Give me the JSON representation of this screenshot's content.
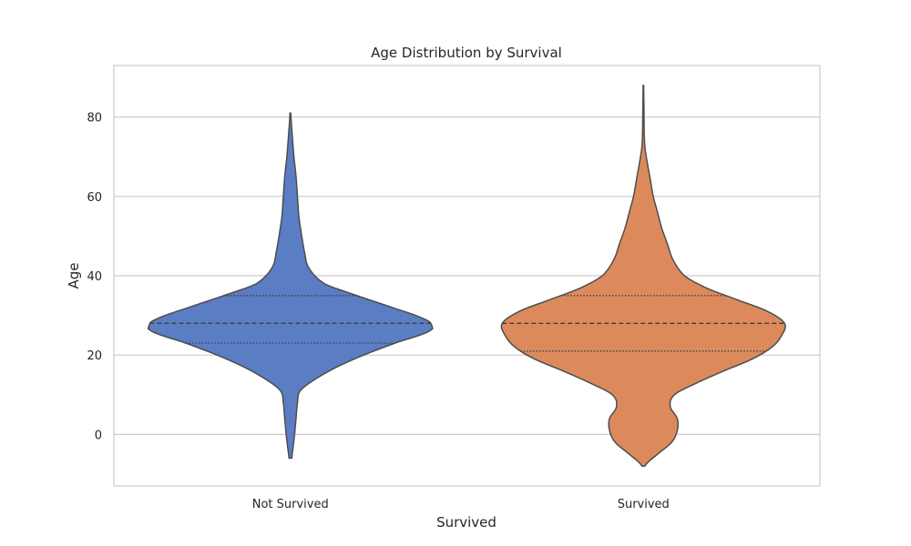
{
  "chart_data": {
    "type": "violin",
    "title": "Age Distribution by Survival",
    "xlabel": "Survived",
    "ylabel": "Age",
    "ylim": [
      -13,
      93
    ],
    "yticks": [
      0,
      20,
      40,
      60,
      80
    ],
    "grid": true,
    "inner": "quartile",
    "categories": [
      "Not Survived",
      "Survived"
    ],
    "series": [
      {
        "category": "Not Survived",
        "color": "#5a7dc4",
        "min": -6,
        "max": 81,
        "q1": 23,
        "median": 28,
        "q3": 35,
        "density": [
          [
            -6,
            0.01
          ],
          [
            -3,
            0.02
          ],
          [
            0,
            0.03
          ],
          [
            4,
            0.04
          ],
          [
            8,
            0.05
          ],
          [
            11,
            0.07
          ],
          [
            14,
            0.18
          ],
          [
            17,
            0.33
          ],
          [
            20,
            0.52
          ],
          [
            23,
            0.74
          ],
          [
            26,
            0.98
          ],
          [
            27.5,
            1.0
          ],
          [
            29,
            0.95
          ],
          [
            32,
            0.72
          ],
          [
            35,
            0.47
          ],
          [
            38,
            0.24
          ],
          [
            42,
            0.13
          ],
          [
            46,
            0.1
          ],
          [
            50,
            0.08
          ],
          [
            55,
            0.06
          ],
          [
            60,
            0.05
          ],
          [
            65,
            0.04
          ],
          [
            70,
            0.025
          ],
          [
            76,
            0.012
          ],
          [
            81,
            0.003
          ]
        ]
      },
      {
        "category": "Survived",
        "color": "#dc8a5c",
        "min": -8,
        "max": 88,
        "q1": 21,
        "median": 28,
        "q3": 35,
        "density": [
          [
            -8,
            0.01
          ],
          [
            -5,
            0.1
          ],
          [
            -2,
            0.2
          ],
          [
            1,
            0.24
          ],
          [
            4,
            0.24
          ],
          [
            7,
            0.19
          ],
          [
            10,
            0.22
          ],
          [
            13,
            0.38
          ],
          [
            16,
            0.57
          ],
          [
            19,
            0.77
          ],
          [
            22,
            0.91
          ],
          [
            25,
            0.98
          ],
          [
            28,
            1.0
          ],
          [
            31,
            0.88
          ],
          [
            34,
            0.66
          ],
          [
            37,
            0.44
          ],
          [
            40,
            0.29
          ],
          [
            44,
            0.21
          ],
          [
            48,
            0.17
          ],
          [
            52,
            0.13
          ],
          [
            56,
            0.1
          ],
          [
            60,
            0.07
          ],
          [
            64,
            0.05
          ],
          [
            68,
            0.03
          ],
          [
            72,
            0.012
          ],
          [
            76,
            0.006
          ],
          [
            82,
            0.004
          ],
          [
            88,
            0.002
          ]
        ]
      }
    ]
  }
}
